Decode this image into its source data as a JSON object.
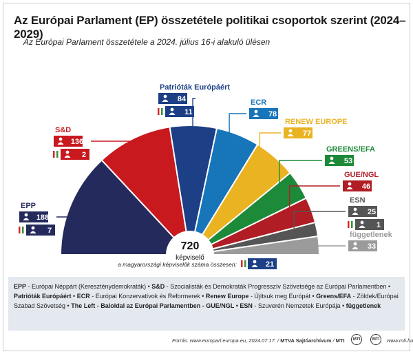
{
  "title": "Az Európai Parlament (EP) összetétele politikai csoportok szerint (2024–2029)",
  "subtitle": "Az Európai Parlament összetétele a 2024. július 16-i alakuló ülésen",
  "chart_data": {
    "type": "pie",
    "variant": "parliament-semicircle",
    "center_total": "720",
    "center_label": "képviselő",
    "categories": [
      "EPP",
      "S&D",
      "Patrióták Európáért",
      "ECR",
      "RENEW EUROPE",
      "GREENS/EFA",
      "GUE/NGL",
      "ESN",
      "függetlenek"
    ],
    "values": [
      188,
      136,
      84,
      78,
      77,
      53,
      46,
      25,
      33
    ],
    "hungarian_members": [
      7,
      2,
      11,
      null,
      null,
      null,
      null,
      1,
      null
    ],
    "colors": [
      "#252a5c",
      "#c8191f",
      "#1c3f86",
      "#1775ba",
      "#eab322",
      "#1d8a3a",
      "#b01d24",
      "#555555",
      "#9b9b9b"
    ],
    "hungarian_total_label": "a magyarországi képviselők száma összesen:",
    "hungarian_total": "21"
  },
  "legend_text": [
    {
      "abbr": "EPP",
      "desc": " - Európai Néppárt (Kereszténydemokraták) • "
    },
    {
      "abbr": "S&D",
      "desc": " - Szocialisták és Demokraták Progresszív Szövetsége az Európai Parlamentben • "
    },
    {
      "abbr": "Patrióták Európáért",
      "desc": " • "
    },
    {
      "abbr": "ECR",
      "desc": " - Európai Konzervatívok és Reformerek • "
    },
    {
      "abbr": "Renew Europe",
      "desc": " - Újítsuk meg Európát • "
    },
    {
      "abbr": "Greens/EFA",
      "desc": " - Zöldek/Európai Szabad Szövetség • "
    },
    {
      "abbr": "The Left - Baloldal az Európai Parlamentben - GUE/NGL",
      "desc": " • "
    },
    {
      "abbr": "ESN",
      "desc": " - Szuverén Nemzetek Európája • "
    },
    {
      "abbr": "függetlenek",
      "desc": ""
    }
  ],
  "footer": {
    "source": "Forrás: www.europarl.europa.eu, 2024.07.17.",
    "credit": "MTVA Sajtóarchívum",
    "agency": "MTI",
    "url": "www.mti.hu",
    "logo1": "MTI",
    "logo2": "MTI"
  }
}
